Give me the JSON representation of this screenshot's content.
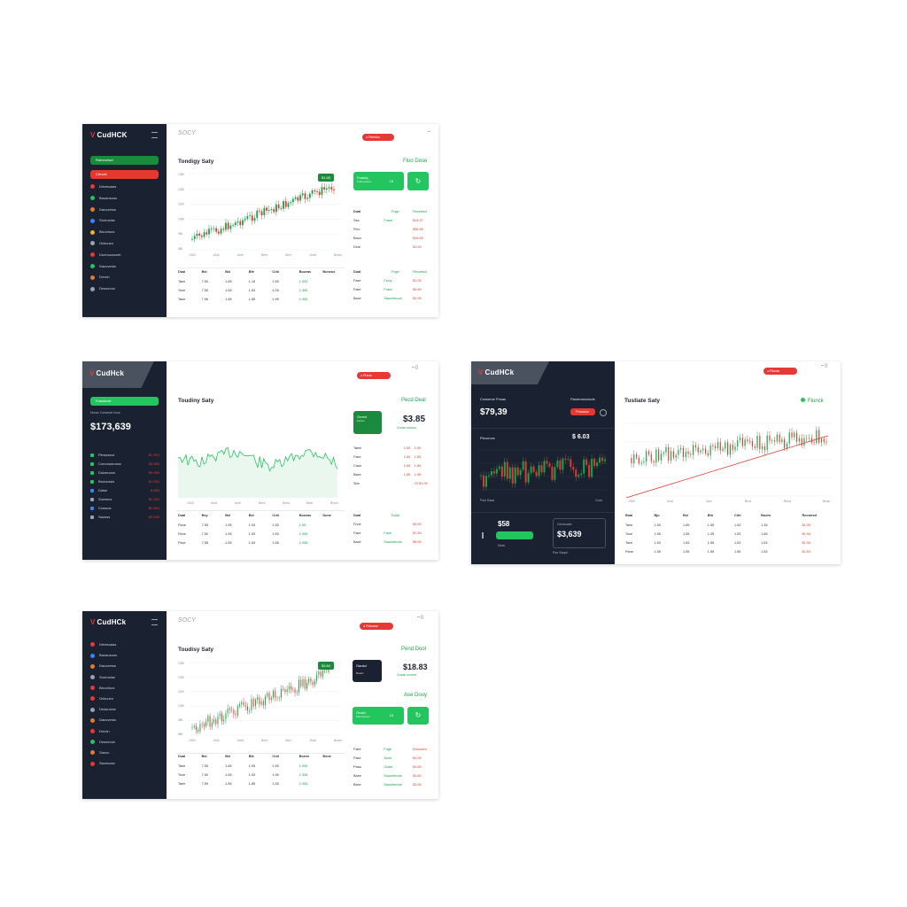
{
  "colors": {
    "sidebar": "#1a2130",
    "accent_green": "#22c55e",
    "accent_red": "#e53935",
    "up": "#16a34a",
    "down": "#e03b2f"
  },
  "brand": {
    "top_left": "CudHCK",
    "middle_left": "CudHck",
    "middle_right": "CudHCk",
    "bottom_left": "CudHCk"
  },
  "search_texts": {
    "top_left": "SOCY",
    "bottom_left": "SOCY"
  },
  "mock1": {
    "title": "Tondigy Saty",
    "right_title": "Fluo Dose",
    "side_green_pill": "Raivnsdwd",
    "side_red_pill": "Crtuvsl",
    "nav": [
      {
        "label": "Drbesuaas",
        "icon": "coin-icon",
        "color": "#e53935"
      },
      {
        "label": "Bauausous",
        "icon": "coin-icon",
        "color": "#22c55e"
      },
      {
        "label": "Dacoxetus",
        "icon": "coin-icon",
        "color": "#e07b2f"
      },
      {
        "label": "Soreuvlas",
        "icon": "coin-icon",
        "color": "#3b82f6"
      },
      {
        "label": "Bicuvtuus",
        "icon": "coin-icon",
        "color": "#f5b027"
      },
      {
        "label": "Onkcueo",
        "icon": "coin-icon",
        "color": "#9aa3ad"
      },
      {
        "label": "Donmucsceet",
        "icon": "coin-icon",
        "color": "#e53935"
      },
      {
        "label": "Dacuvesla",
        "icon": "coin-icon",
        "color": "#22c55e"
      },
      {
        "label": "Drecin",
        "icon": "coin-icon",
        "color": "#e07b2f"
      },
      {
        "label": "Deaxecus",
        "icon": "coin-icon",
        "color": "#9aa3ad"
      }
    ],
    "chart_tag": "$1.85",
    "green_card": {
      "label": "Frasdq",
      "sub": "Cakxveasce",
      "value": "15"
    },
    "mini_headers": [
      "Dual",
      "Fnge",
      "Recwesd"
    ],
    "mini_rows": [
      {
        "a": "Ssa",
        "b": "Frase",
        "c": "$13.57",
        "bc": "g",
        "cc": "r"
      },
      {
        "a": "Fino",
        "b": "",
        "c": "$35.85",
        "bc": "",
        "cc": "r"
      },
      {
        "a": "Baca",
        "b": "",
        "c": "$15.85",
        "bc": "",
        "cc": "r"
      },
      {
        "a": "Dine",
        "b": "",
        "c": "$1.59",
        "bc": "",
        "cc": "r"
      }
    ],
    "table_headers": [
      "Dual",
      "Bsl",
      "Bsl",
      "Bfe",
      "Crbl",
      "Bozeas",
      "Boneus"
    ],
    "table_rows": [
      [
        "Taee",
        "7.50",
        "1.65",
        "1.15",
        "1.55",
        "1.953"
      ],
      [
        "Tone",
        "7.55",
        "1.65",
        "1.53",
        "1.05",
        "1.355"
      ],
      [
        "Taee",
        "7.96",
        "1.85",
        "1.85",
        "1.95",
        "1.953"
      ]
    ],
    "right_table_headers": [
      "Dual",
      "Fnge",
      "Recwesd"
    ],
    "right_table_rows": [
      {
        "a": "Faze",
        "b": "Fiooy",
        "c": "$1.05"
      },
      {
        "a": "Fase",
        "b": "Frasv",
        "c": "$4.85"
      },
      {
        "a": "Bace",
        "b": "Sauuhteuus",
        "c": "$1.95"
      }
    ],
    "x_ticks": [
      "1950",
      "1Ant",
      "Anet",
      "Bers",
      "Bert",
      "Drae",
      "Brwrs"
    ],
    "y_ticks": [
      "1380",
      "1280",
      "1180",
      "1080",
      "980",
      "880"
    ]
  },
  "mock2": {
    "title": "Toudiny Saty",
    "right_title": "Pecd Deal",
    "side_green_pill": "Frasdiowt",
    "side_sub": "Nuusx Ourseeat Nuur",
    "balance": "$173,639",
    "coins": [
      {
        "label": "Plenussve",
        "value": "$1.953",
        "color": "#22c55e"
      },
      {
        "label": "Conoxaurosse",
        "value": "$3.965",
        "color": "#22c55e"
      },
      {
        "label": "Doiceuous",
        "value": "$5.955",
        "color": "#22c55e"
      },
      {
        "label": "Bruicussis",
        "value": "$1.953",
        "color": "#22c55e"
      },
      {
        "label": "Daise",
        "value": "$.983",
        "color": "#3b82f6"
      },
      {
        "label": "Sowmus",
        "value": "$2.153",
        "color": "#9aa3ad"
      },
      {
        "label": "Cowuos",
        "value": "$2.563",
        "color": "#3b82f6"
      },
      {
        "label": "Sausss",
        "value": "$3.535",
        "color": "#9aa3ad"
      }
    ],
    "card": {
      "label": "Omed",
      "sub": "Pecao"
    },
    "price": "$3.85",
    "price_sub": "Cccae oxcoou",
    "mini_rows": [
      {
        "a": "Taeel",
        "b": "1.65",
        "c": "1.50"
      },
      {
        "a": "Fase",
        "b": "1.55",
        "c": "1.65"
      },
      {
        "a": "Cane",
        "b": "1.65",
        "c": "1.85"
      },
      {
        "a": "Bsee",
        "b": "1.85",
        "c": "1.95"
      },
      {
        "a": "Sbe",
        "b": "",
        "c": "15 $1.05"
      }
    ],
    "table_headers": [
      "Dual",
      "Bsy",
      "Bsl",
      "Bsl",
      "Crbl",
      "Bozeas",
      "Dune"
    ],
    "table_rows": [
      [
        "Pane",
        "7.55",
        "1.95",
        "1.53",
        "1.55",
        "1.55"
      ],
      [
        "Pans",
        "7.50",
        "1.55",
        "1.53",
        "1.59",
        "1.953"
      ],
      [
        "Pace",
        "7.55",
        "1.65",
        "1.53",
        "1.55",
        "1.055"
      ]
    ],
    "right_table_headers": [
      "Dual",
      "Dural"
    ],
    "right_table_rows": [
      {
        "a": "Fnoe",
        "b": "",
        "c": "$3.50"
      },
      {
        "a": "Fase",
        "b": "Faoe",
        "c": "$7.85"
      },
      {
        "a": "Bace",
        "b": "Sauuhteuus",
        "c": "$5.95"
      }
    ],
    "x_ticks": [
      "1943",
      "Anst",
      "Aonl",
      "Bera",
      "Bena",
      "Bear",
      "Brves"
    ]
  },
  "mock3": {
    "title": "Tustiate Saty",
    "right_title": "Fiunck",
    "left_label": "Cowoeoe Fhoas",
    "right_label": "Ftaoeranoviuds",
    "value_left": "$79,39",
    "value_right": "$ 6.03",
    "chart_label": "Pbcorcos",
    "bottom_left_value": "$58",
    "bottom_left_sub": "Deas",
    "bottom_card_label": "Cemcsatcr",
    "bottom_card_value": "$3,639",
    "bottom_card_sub": "Pao Saopn",
    "bottom_axis_left": "Pasi Saaa",
    "bottom_axis_right": "Cues",
    "table_headers": [
      "Bual",
      "Bju",
      "Bsl",
      "Bfu",
      "Crbl",
      "Bozes",
      "Recwesd"
    ],
    "table_rows": [
      [
        "Tane",
        "1.50",
        "1.65",
        "1.55",
        "1.53",
        "1.35",
        "$1.95"
      ],
      [
        "Tone",
        "1.55",
        "1.55",
        "1.35",
        "1.53",
        "1.65",
        "$1.95"
      ],
      [
        "Tane",
        "1.50",
        "1.53",
        "1.55",
        "1.53",
        "1.53",
        "$1.95"
      ],
      [
        "Pane",
        "1.55",
        "1.55",
        "1.55",
        "1.55",
        "1.53",
        "$1.53"
      ]
    ],
    "x_ticks": [
      "1980",
      "Aust",
      "Assi",
      "Brne",
      "Bena",
      "Brwe"
    ]
  },
  "mock4": {
    "title": "Toudisy Saty",
    "right_title": "Pend Dool",
    "right_title2": "Ase Douy",
    "nav": [
      {
        "label": "Drbesuaas",
        "color": "#e53935"
      },
      {
        "label": "Bauausous",
        "color": "#3b82f6"
      },
      {
        "label": "Dacoxetus",
        "color": "#e07b2f"
      },
      {
        "label": "Soreuvlas",
        "color": "#9aa3ad"
      },
      {
        "label": "Bicuvtuus",
        "color": "#e53935"
      },
      {
        "label": "Onkcueo",
        "color": "#e53935"
      },
      {
        "label": "Deasuclos",
        "color": "#9aa3ad"
      },
      {
        "label": "Dacuvesla",
        "color": "#e07b2f"
      },
      {
        "label": "Drecin",
        "color": "#e53935"
      },
      {
        "label": "Deaxecus",
        "color": "#22c55e"
      },
      {
        "label": "Sanoc",
        "color": "#e07b2f"
      },
      {
        "label": "Sacesoas",
        "color": "#e53935"
      }
    ],
    "chart_tag": "$3.84",
    "dark_card": {
      "label": "Oaosd",
      "sub": "Doonc"
    },
    "price": "$18.83",
    "price_sub": "Cusae oxuxxe",
    "green_card": {
      "label": "Onaid",
      "sub": "Pianoauson",
      "value": "15"
    },
    "mini_rows": [
      {
        "a": "Faee",
        "b": "Foge",
        "c": "Ruscwed"
      },
      {
        "a": "Fase",
        "b": "Aone",
        "c": "$1.05"
      },
      {
        "a": "Pasa",
        "b": "Ooise",
        "c": "$1.85"
      },
      {
        "a": "Baee",
        "b": "Sauuhteuus",
        "c": "$1.85"
      },
      {
        "a": "Bace",
        "b": "Sauuhteuus",
        "c": "$1.95"
      }
    ],
    "table_headers": [
      "Dual",
      "Bsl",
      "Bsl",
      "Bfe",
      "Crbl",
      "Bozes",
      "Bone"
    ],
    "table_rows": [
      [
        "Taee",
        "7.55",
        "1.65",
        "1.95",
        "1.55",
        "1.953"
      ],
      [
        "Tone",
        "7.50",
        "1.65",
        "1.53",
        "1.95",
        "1.355"
      ],
      [
        "Taee",
        "7.59",
        "1.85",
        "1.85",
        "1.55",
        "1.953"
      ]
    ],
    "x_ticks": [
      "1950",
      "1Ant",
      "Anet",
      "Bers",
      "Bert",
      "Drae",
      "Brwrs"
    ],
    "y_ticks": [
      "1380",
      "1280",
      "1180",
      "1080",
      "980",
      "880"
    ]
  }
}
